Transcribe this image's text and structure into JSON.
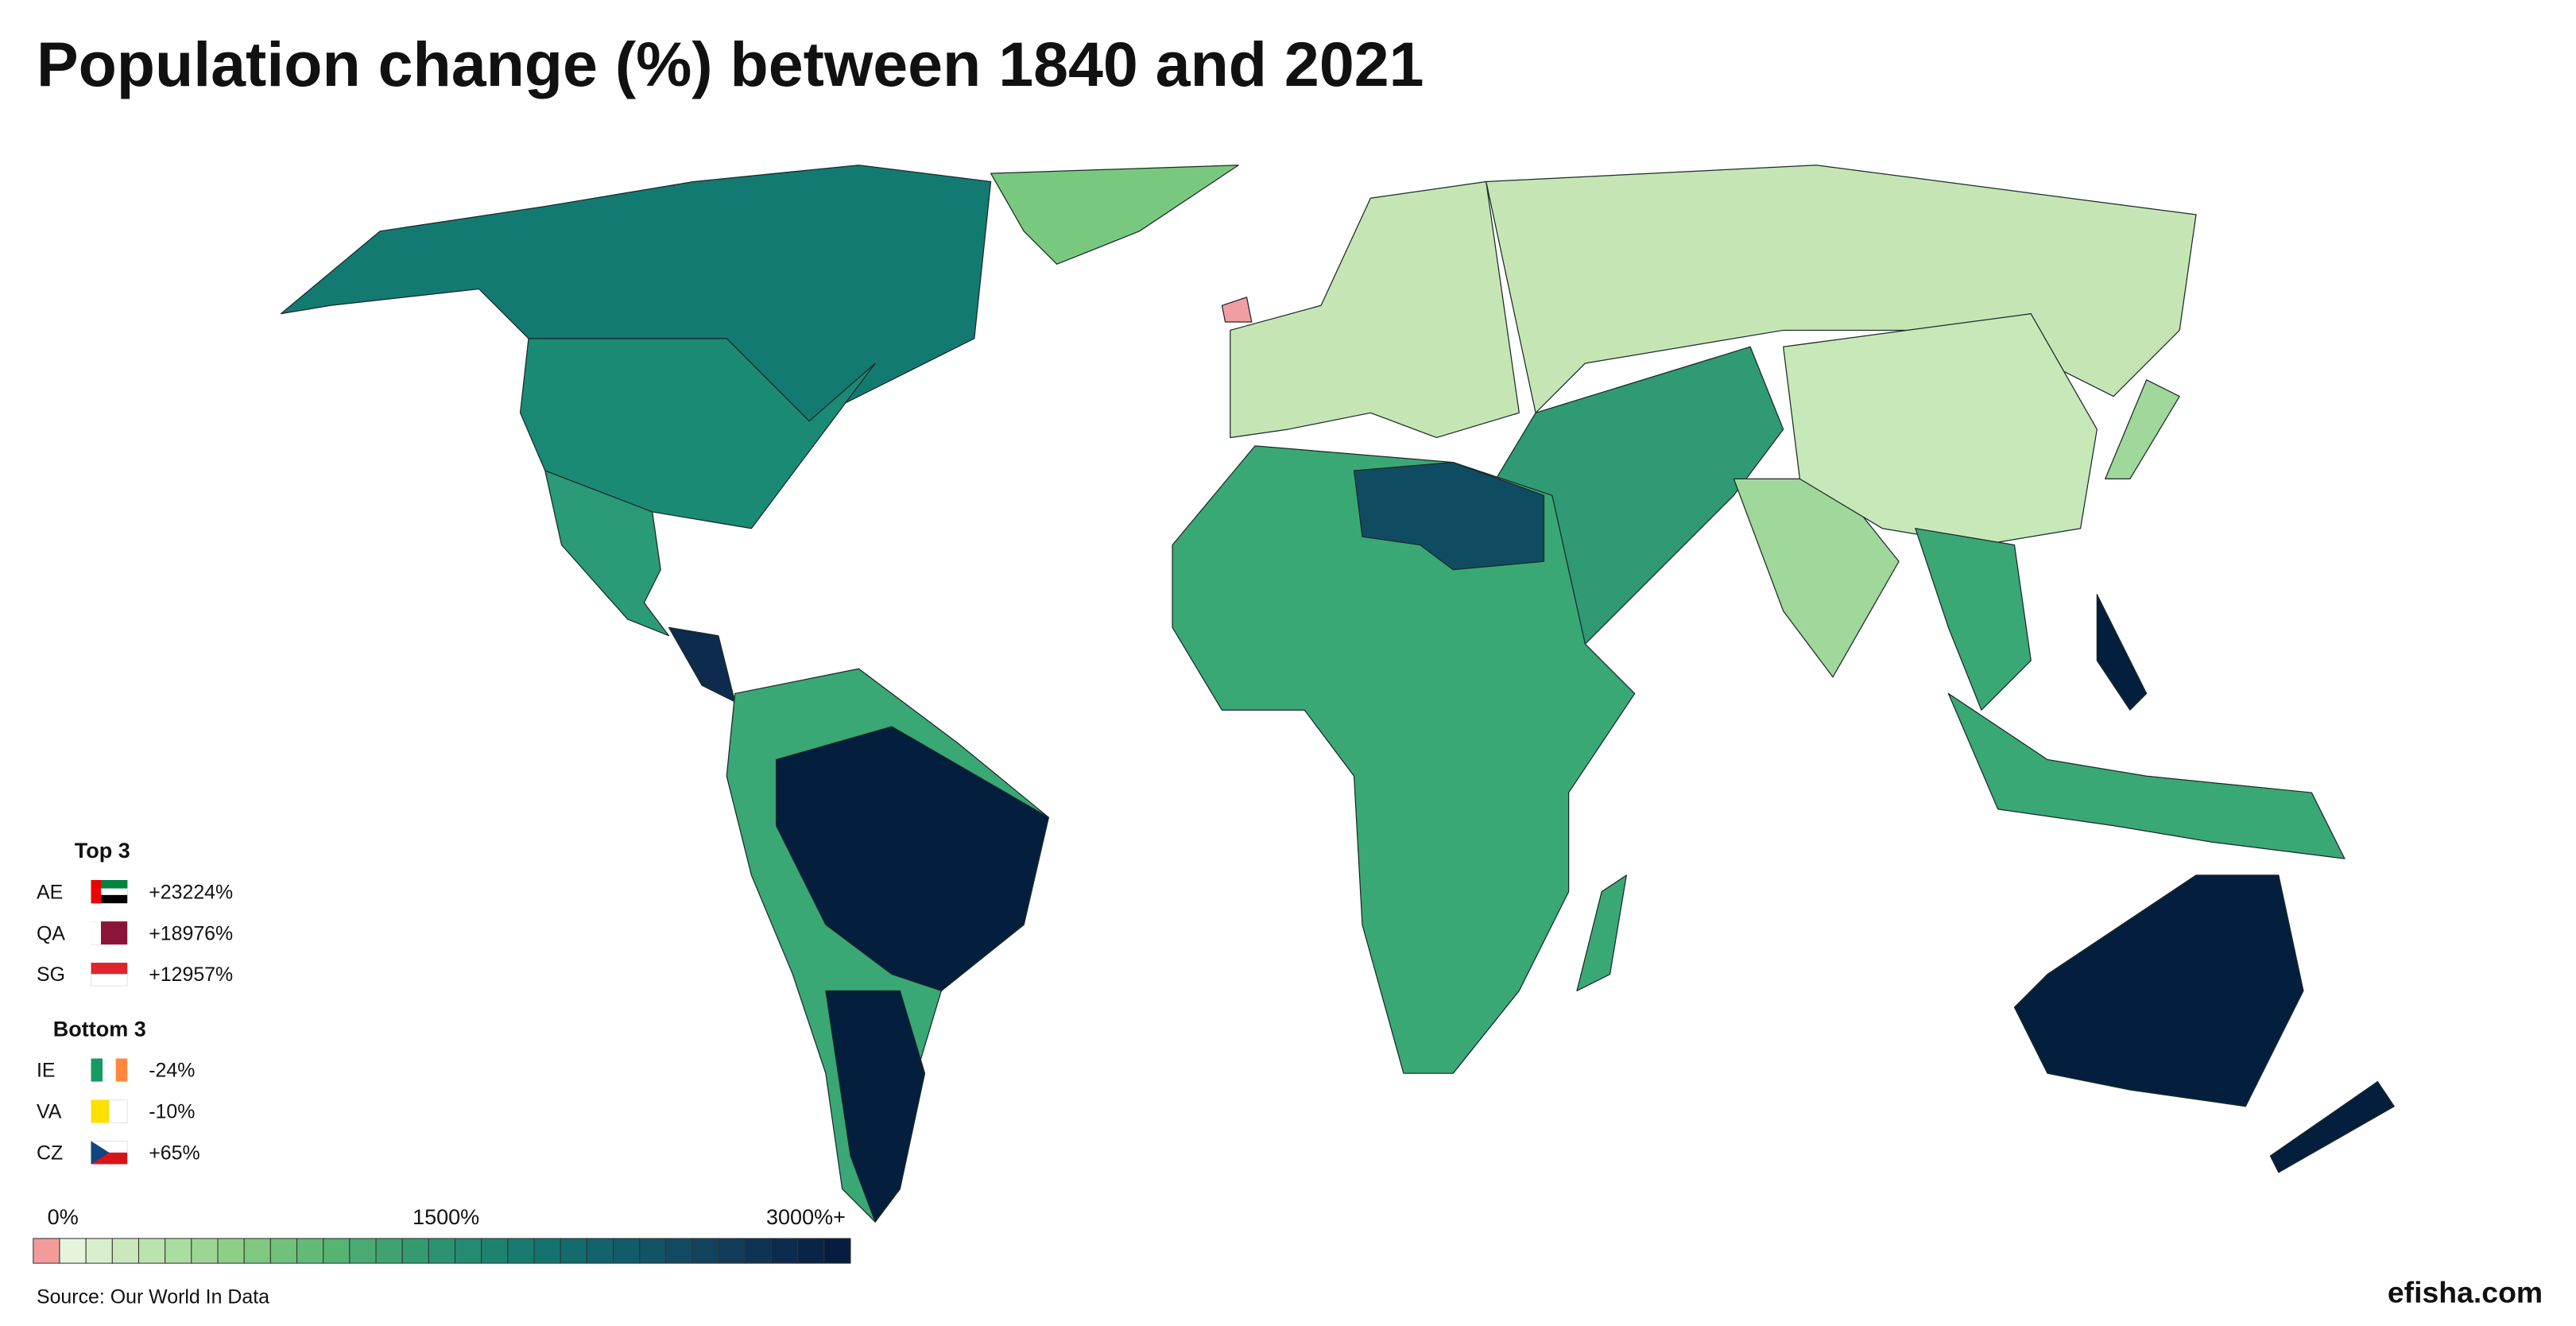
{
  "header": {
    "title": "Population change (%) between 1840 and 2021"
  },
  "top": {
    "title": "Top 3",
    "rows": [
      {
        "code": "AE",
        "value": "+23224%"
      },
      {
        "code": "QA",
        "value": "+18976%"
      },
      {
        "code": "SG",
        "value": "+12957%"
      }
    ]
  },
  "bottom": {
    "title": "Bottom 3",
    "rows": [
      {
        "code": "IE",
        "value": "-24%"
      },
      {
        "code": "VA",
        "value": "-10%"
      },
      {
        "code": "CZ",
        "value": "+65%"
      }
    ]
  },
  "scale": {
    "labels": [
      "0%",
      "1500%",
      "3000%+"
    ],
    "colors": [
      "#f29b9b",
      "#e6f4de",
      "#d8efcd",
      "#c9e9bd",
      "#bbe3ae",
      "#acdda0",
      "#9dd693",
      "#8ecf88",
      "#7fc87f",
      "#70c17a",
      "#62ba76",
      "#55b373",
      "#49ab72",
      "#3ea371",
      "#349b71",
      "#2b9371",
      "#238b71",
      "#1d8371",
      "#187b70",
      "#15736f",
      "#136b6d",
      "#12636b",
      "#125b68",
      "#125365",
      "#124b61",
      "#12435d",
      "#113b58",
      "#0f3352",
      "#0d2b4c",
      "#0a2446",
      "#061d3f"
    ]
  },
  "footer": {
    "source": "Source: Our World In Data",
    "brand": "efisha.com"
  }
}
